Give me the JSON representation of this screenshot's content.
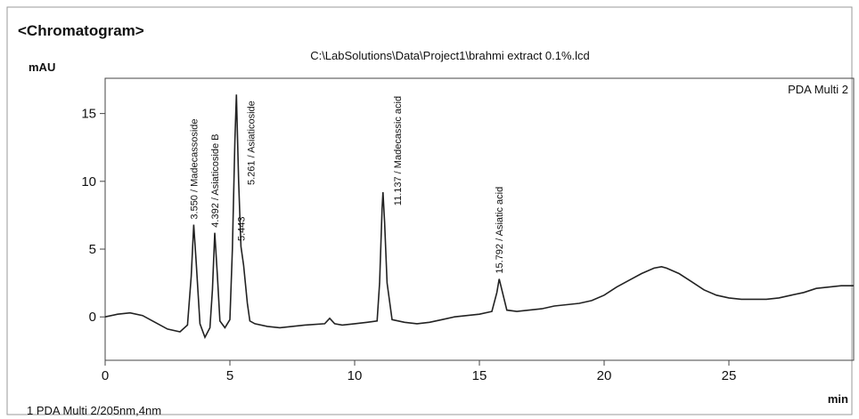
{
  "chart_data": {
    "type": "line",
    "header": "<Chromatogram>",
    "title": "C:\\LabSolutions\\Data\\Project1\\brahmi extract 0.1%.lcd",
    "y_label": "mAU",
    "x_label": "min",
    "footer": "1 PDA Multi 2/205nm,4nm",
    "xlim": [
      0,
      30
    ],
    "ylim": [
      -3.2,
      17.6
    ],
    "xticks": [
      0,
      5,
      10,
      15,
      20,
      25
    ],
    "yticks": [
      0,
      5,
      10,
      15
    ],
    "x": [
      0,
      0.5,
      1,
      1.5,
      2,
      2.5,
      3,
      3.3,
      3.45,
      3.55,
      3.65,
      3.8,
      4.0,
      4.2,
      4.3,
      4.392,
      4.5,
      4.6,
      4.8,
      5.0,
      5.1,
      5.2,
      5.261,
      5.35,
      5.443,
      5.55,
      5.7,
      5.8,
      6.0,
      6.5,
      7,
      8,
      8.8,
      9.0,
      9.2,
      9.5,
      10,
      10.5,
      10.9,
      11.0,
      11.1,
      11.137,
      11.2,
      11.3,
      11.5,
      12,
      12.5,
      13,
      13.5,
      14,
      14.5,
      15,
      15.5,
      15.7,
      15.792,
      15.9,
      16.1,
      16.5,
      17,
      17.5,
      18,
      18.5,
      19,
      19.5,
      20,
      20.5,
      21,
      21.5,
      22,
      22.3,
      22.5,
      23,
      23.5,
      24,
      24.5,
      25,
      25.5,
      26,
      26.5,
      27,
      27.5,
      28,
      28.5,
      29,
      29.5,
      30
    ],
    "series": [
      {
        "name": "PDA Multi 2",
        "color": "#222222",
        "values": [
          0,
          0.2,
          0.3,
          0.1,
          -0.4,
          -0.9,
          -1.1,
          -0.6,
          3,
          6.8,
          4,
          -0.5,
          -1.5,
          -0.8,
          2,
          6.2,
          3,
          -0.3,
          -0.8,
          -0.2,
          5,
          13,
          16.4,
          10,
          5.2,
          3.8,
          1,
          -0.3,
          -0.5,
          -0.7,
          -0.8,
          -0.6,
          -0.5,
          -0.1,
          -0.5,
          -0.6,
          -0.5,
          -0.4,
          -0.3,
          2.5,
          8,
          9.2,
          7,
          2.5,
          -0.2,
          -0.4,
          -0.5,
          -0.4,
          -0.2,
          0,
          0.1,
          0.2,
          0.4,
          1.8,
          2.8,
          2,
          0.5,
          0.4,
          0.5,
          0.6,
          0.8,
          0.9,
          1.0,
          1.2,
          1.6,
          2.2,
          2.7,
          3.2,
          3.6,
          3.7,
          3.6,
          3.2,
          2.6,
          2.0,
          1.6,
          1.4,
          1.3,
          1.3,
          1.3,
          1.4,
          1.6,
          1.8,
          2.1,
          2.2,
          2.3,
          2.3
        ]
      }
    ],
    "annotations": [
      {
        "x": 3.55,
        "label": "3.550 / Madecassoside"
      },
      {
        "x": 4.392,
        "label": "4.392 / Asiaticoside B"
      },
      {
        "x": 5.261,
        "label": "5.261 / Asiaticoside"
      },
      {
        "x": 5.443,
        "label": "5.443"
      },
      {
        "x": 11.137,
        "label": "11.137 / Madecassic acid"
      },
      {
        "x": 15.792,
        "label": "15.792 / Asiatic acid"
      }
    ]
  }
}
